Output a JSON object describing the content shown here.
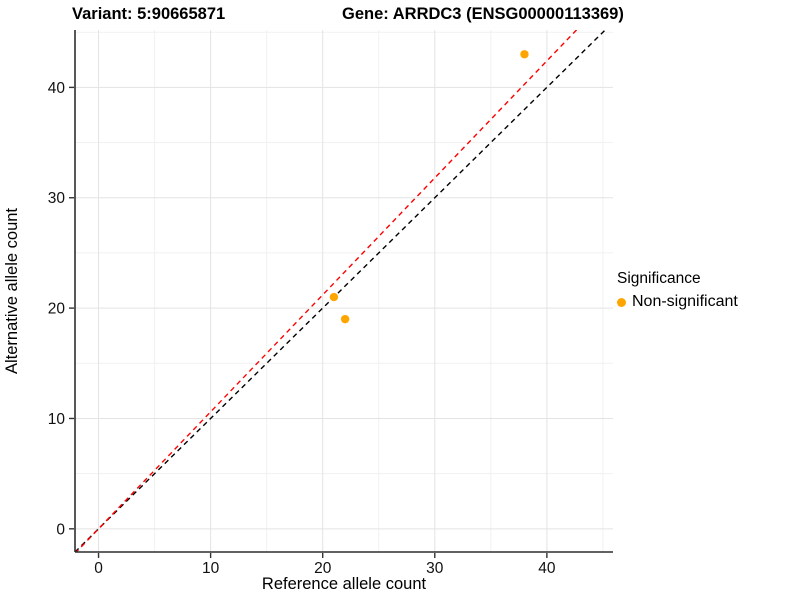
{
  "chart_data": {
    "type": "scatter",
    "title_left": "Variant: 5:90665871",
    "title_right": "Gene: ARRDC3 (ENSG00000113369)",
    "xlabel": "Reference allele count",
    "ylabel": "Alternative allele count",
    "xlim": [
      -2.1,
      45.9
    ],
    "ylim": [
      -2.1,
      45.2
    ],
    "x_ticks": [
      0,
      10,
      20,
      30,
      40
    ],
    "y_ticks": [
      0,
      10,
      20,
      30,
      40
    ],
    "x_minor_ticks": [
      5,
      15,
      25,
      35,
      45
    ],
    "y_minor_ticks": [
      5,
      15,
      25,
      35,
      45
    ],
    "grid": "major+minor",
    "legend": {
      "title": "Significance",
      "position": "right",
      "items": [
        {
          "label": "Non-significant",
          "color": "#FFA500"
        }
      ]
    },
    "series": [
      {
        "name": "Non-significant",
        "color": "#FFA500",
        "points": [
          {
            "x": 21,
            "y": 21
          },
          {
            "x": 22,
            "y": 19
          },
          {
            "x": 38,
            "y": 43
          }
        ]
      }
    ],
    "reference_lines": [
      {
        "name": "identity-line",
        "slope": 1.0,
        "intercept": 0,
        "color": "#000000",
        "style": "dashed"
      },
      {
        "name": "fit-line",
        "slope": 1.06,
        "intercept": 0,
        "color": "#FF0000",
        "style": "dashed"
      }
    ],
    "colors": {
      "grid_major": "#E3E3E3",
      "grid_minor": "#F1F1F1",
      "axis_line": "#2E2E2E",
      "tick_mark": "#333333",
      "text": "#000000",
      "background": "#FFFFFF"
    }
  }
}
